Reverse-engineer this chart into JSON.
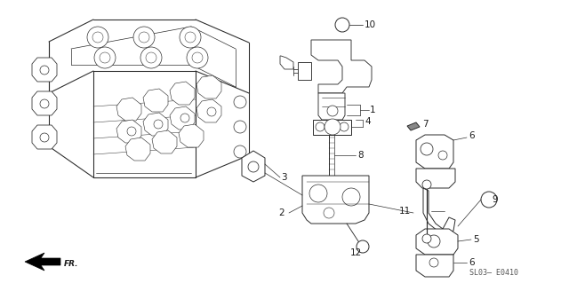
{
  "background_color": "#ffffff",
  "fig_width": 6.4,
  "fig_height": 3.19,
  "dpi": 100,
  "watermark": "SL03— E0410",
  "line_color": "#2a2a2a",
  "text_color": "#1a1a1a",
  "line_width": 0.7
}
